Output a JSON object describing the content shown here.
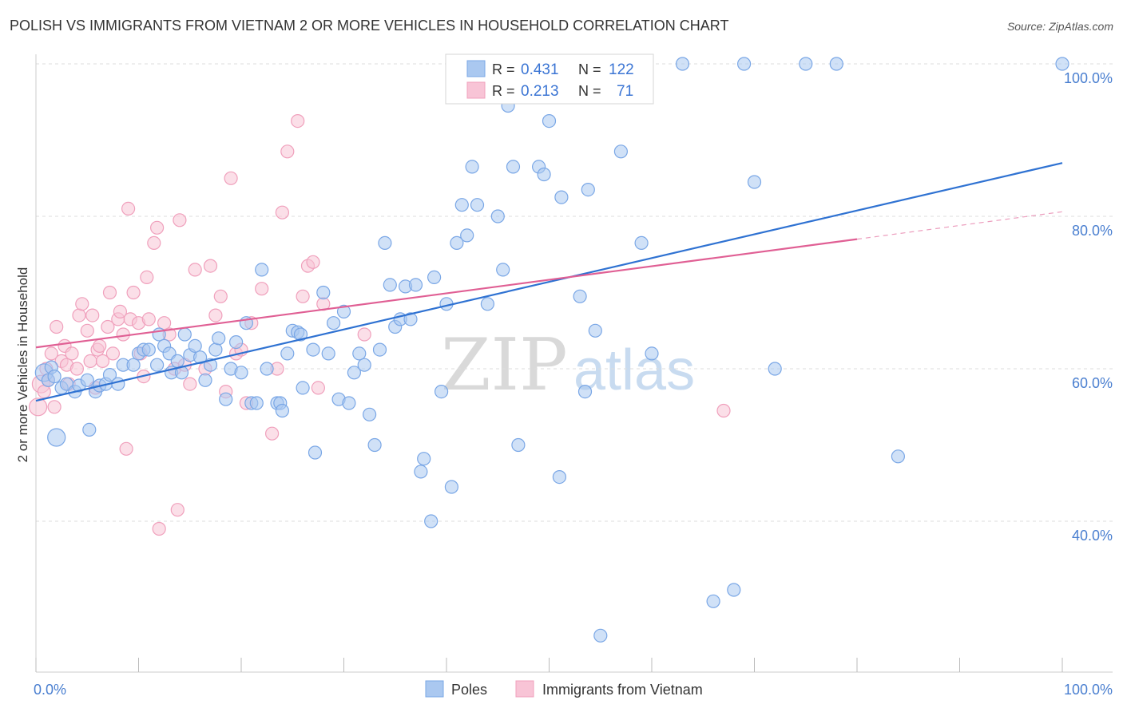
{
  "chart_data": {
    "type": "scatter",
    "title": "POLISH VS IMMIGRANTS FROM VIETNAM 2 OR MORE VEHICLES IN HOUSEHOLD CORRELATION CHART",
    "source": "Source: ZipAtlas.com",
    "ylabel": "2 or more Vehicles in Household",
    "xlabel": "",
    "xlim": [
      0,
      100
    ],
    "ylim": [
      20,
      102
    ],
    "x_tick_labels": [
      "0.0%",
      "100.0%"
    ],
    "y_ticks": [
      40,
      60,
      80,
      100
    ],
    "y_tick_labels": [
      "40.0%",
      "60.0%",
      "80.0%",
      "100.0%"
    ],
    "grid": true,
    "legend_position": "top-center",
    "series": [
      {
        "name": "Poles",
        "color": "#7aa7e6",
        "fill": "#aac8f0",
        "line_color": "#2f72d2",
        "R": "0.431",
        "N": "122",
        "trend": {
          "x": [
            0,
            100
          ],
          "y": [
            55.8,
            87.0
          ]
        },
        "points": [
          [
            0.8,
            59.5
          ],
          [
            1.2,
            58.5
          ],
          [
            1.5,
            60.2
          ],
          [
            1.8,
            59.0
          ],
          [
            2.0,
            51.0
          ],
          [
            2.5,
            57.5
          ],
          [
            3.0,
            58.0
          ],
          [
            3.8,
            57.0
          ],
          [
            4.2,
            57.8
          ],
          [
            5.0,
            58.5
          ],
          [
            5.2,
            52.0
          ],
          [
            5.8,
            57.0
          ],
          [
            6.2,
            57.8
          ],
          [
            6.8,
            58.0
          ],
          [
            7.2,
            59.2
          ],
          [
            8.0,
            58.0
          ],
          [
            8.5,
            60.5
          ],
          [
            9.5,
            60.5
          ],
          [
            10.0,
            62.0
          ],
          [
            10.5,
            62.5
          ],
          [
            11.0,
            62.5
          ],
          [
            11.8,
            60.5
          ],
          [
            12.0,
            64.5
          ],
          [
            12.5,
            63.0
          ],
          [
            13.0,
            62.0
          ],
          [
            13.2,
            59.5
          ],
          [
            13.8,
            61.0
          ],
          [
            14.2,
            59.5
          ],
          [
            14.5,
            64.5
          ],
          [
            15.0,
            61.8
          ],
          [
            15.5,
            63.0
          ],
          [
            16.0,
            61.5
          ],
          [
            16.5,
            58.5
          ],
          [
            17.0,
            60.5
          ],
          [
            17.5,
            62.5
          ],
          [
            17.8,
            64.0
          ],
          [
            18.5,
            56.0
          ],
          [
            19.0,
            60.0
          ],
          [
            19.5,
            63.5
          ],
          [
            20.0,
            59.5
          ],
          [
            20.5,
            66.0
          ],
          [
            21.0,
            55.5
          ],
          [
            21.5,
            55.5
          ],
          [
            22.0,
            73.0
          ],
          [
            22.5,
            60.0
          ],
          [
            23.5,
            55.5
          ],
          [
            23.8,
            55.5
          ],
          [
            24.0,
            54.5
          ],
          [
            24.5,
            62.0
          ],
          [
            25.0,
            65.0
          ],
          [
            25.5,
            64.8
          ],
          [
            25.8,
            64.5
          ],
          [
            26.0,
            57.5
          ],
          [
            27.0,
            62.5
          ],
          [
            27.2,
            49.0
          ],
          [
            28.0,
            70.0
          ],
          [
            28.5,
            62.0
          ],
          [
            29.0,
            66.0
          ],
          [
            29.5,
            56.0
          ],
          [
            30.0,
            67.5
          ],
          [
            30.5,
            55.5
          ],
          [
            31.0,
            59.5
          ],
          [
            31.5,
            62.0
          ],
          [
            32.0,
            60.5
          ],
          [
            32.5,
            54.0
          ],
          [
            33.0,
            50.0
          ],
          [
            33.5,
            62.5
          ],
          [
            34.0,
            76.5
          ],
          [
            34.5,
            71.0
          ],
          [
            35.0,
            65.5
          ],
          [
            35.5,
            66.5
          ],
          [
            36.0,
            70.8
          ],
          [
            36.5,
            66.5
          ],
          [
            37.0,
            71.0
          ],
          [
            37.5,
            46.5
          ],
          [
            37.8,
            48.2
          ],
          [
            38.5,
            40.0
          ],
          [
            38.8,
            72.0
          ],
          [
            39.5,
            57.0
          ],
          [
            40.0,
            68.5
          ],
          [
            40.5,
            44.5
          ],
          [
            41.0,
            76.5
          ],
          [
            41.5,
            81.5
          ],
          [
            42.0,
            77.5
          ],
          [
            42.5,
            86.5
          ],
          [
            43.0,
            81.5
          ],
          [
            44.0,
            68.5
          ],
          [
            45.0,
            80.0
          ],
          [
            45.5,
            73.0
          ],
          [
            46.0,
            94.5
          ],
          [
            46.5,
            86.5
          ],
          [
            47.0,
            50.0
          ],
          [
            47.5,
            100.0
          ],
          [
            48.0,
            100.0
          ],
          [
            49.0,
            86.5
          ],
          [
            49.5,
            85.5
          ],
          [
            50.0,
            92.5
          ],
          [
            51.0,
            45.8
          ],
          [
            51.2,
            82.5
          ],
          [
            52.0,
            100.0
          ],
          [
            53.0,
            69.5
          ],
          [
            53.5,
            57.0
          ],
          [
            53.8,
            83.5
          ],
          [
            54.5,
            65.0
          ],
          [
            55.0,
            25.0
          ],
          [
            55.5,
            100.0
          ],
          [
            57.0,
            88.5
          ],
          [
            59.0,
            76.5
          ],
          [
            60.0,
            62.0
          ],
          [
            63.0,
            100.0
          ],
          [
            66.0,
            29.5
          ],
          [
            68.0,
            31.0
          ],
          [
            69.0,
            100.0
          ],
          [
            70.0,
            84.5
          ],
          [
            72.0,
            60.0
          ],
          [
            75.0,
            100.0
          ],
          [
            78.0,
            100.0
          ],
          [
            84.0,
            48.5
          ],
          [
            100.0,
            100.0
          ]
        ]
      },
      {
        "name": "Immigrants from Vietnam",
        "color": "#f0a0bc",
        "fill": "#f8c4d6",
        "line_color": "#e05f94",
        "R": "0.213",
        "N": "71",
        "trend": {
          "x": [
            0,
            80
          ],
          "y": [
            62.8,
            77.0
          ]
        },
        "trend_ext": {
          "x": [
            80,
            100
          ],
          "y": [
            77.0,
            80.6
          ]
        },
        "points": [
          [
            0.2,
            55.0
          ],
          [
            0.5,
            58.0
          ],
          [
            0.8,
            57.0
          ],
          [
            1.0,
            60.0
          ],
          [
            1.2,
            58.5
          ],
          [
            1.5,
            62.0
          ],
          [
            1.8,
            55.0
          ],
          [
            2.0,
            65.5
          ],
          [
            2.5,
            61.0
          ],
          [
            2.8,
            63.0
          ],
          [
            3.0,
            60.5
          ],
          [
            3.2,
            58.0
          ],
          [
            3.5,
            62.0
          ],
          [
            4.0,
            60.0
          ],
          [
            4.2,
            67.0
          ],
          [
            4.5,
            68.5
          ],
          [
            5.0,
            65.0
          ],
          [
            5.3,
            61.0
          ],
          [
            5.5,
            67.0
          ],
          [
            5.8,
            57.5
          ],
          [
            6.0,
            62.5
          ],
          [
            6.2,
            63.0
          ],
          [
            6.5,
            61.0
          ],
          [
            7.0,
            65.5
          ],
          [
            7.2,
            70.0
          ],
          [
            7.5,
            62.0
          ],
          [
            8.0,
            66.5
          ],
          [
            8.2,
            67.5
          ],
          [
            8.5,
            64.5
          ],
          [
            8.8,
            49.5
          ],
          [
            9.0,
            81.0
          ],
          [
            9.2,
            66.5
          ],
          [
            9.5,
            70.0
          ],
          [
            10.0,
            66.0
          ],
          [
            10.2,
            62.0
          ],
          [
            10.5,
            59.0
          ],
          [
            10.8,
            72.0
          ],
          [
            11.0,
            66.5
          ],
          [
            11.5,
            76.5
          ],
          [
            11.8,
            78.5
          ],
          [
            12.0,
            39.0
          ],
          [
            12.5,
            66.0
          ],
          [
            13.0,
            64.5
          ],
          [
            13.5,
            60.0
          ],
          [
            13.8,
            41.5
          ],
          [
            14.0,
            79.5
          ],
          [
            14.5,
            60.5
          ],
          [
            15.0,
            58.0
          ],
          [
            15.5,
            73.0
          ],
          [
            16.5,
            60.0
          ],
          [
            17.0,
            73.5
          ],
          [
            17.5,
            67.0
          ],
          [
            18.0,
            69.5
          ],
          [
            18.5,
            57.0
          ],
          [
            19.0,
            85.0
          ],
          [
            19.5,
            62.0
          ],
          [
            20.0,
            62.5
          ],
          [
            20.5,
            55.5
          ],
          [
            21.0,
            66.0
          ],
          [
            22.0,
            70.5
          ],
          [
            23.0,
            51.5
          ],
          [
            23.5,
            60.0
          ],
          [
            24.0,
            80.5
          ],
          [
            24.5,
            88.5
          ],
          [
            25.5,
            92.5
          ],
          [
            26.0,
            69.5
          ],
          [
            26.5,
            73.5
          ],
          [
            27.0,
            74.0
          ],
          [
            27.5,
            57.5
          ],
          [
            28.0,
            68.5
          ],
          [
            32.0,
            64.5
          ],
          [
            67.0,
            54.5
          ]
        ]
      }
    ]
  },
  "watermark": {
    "zip": "ZIP",
    "atlas": "atlas"
  }
}
